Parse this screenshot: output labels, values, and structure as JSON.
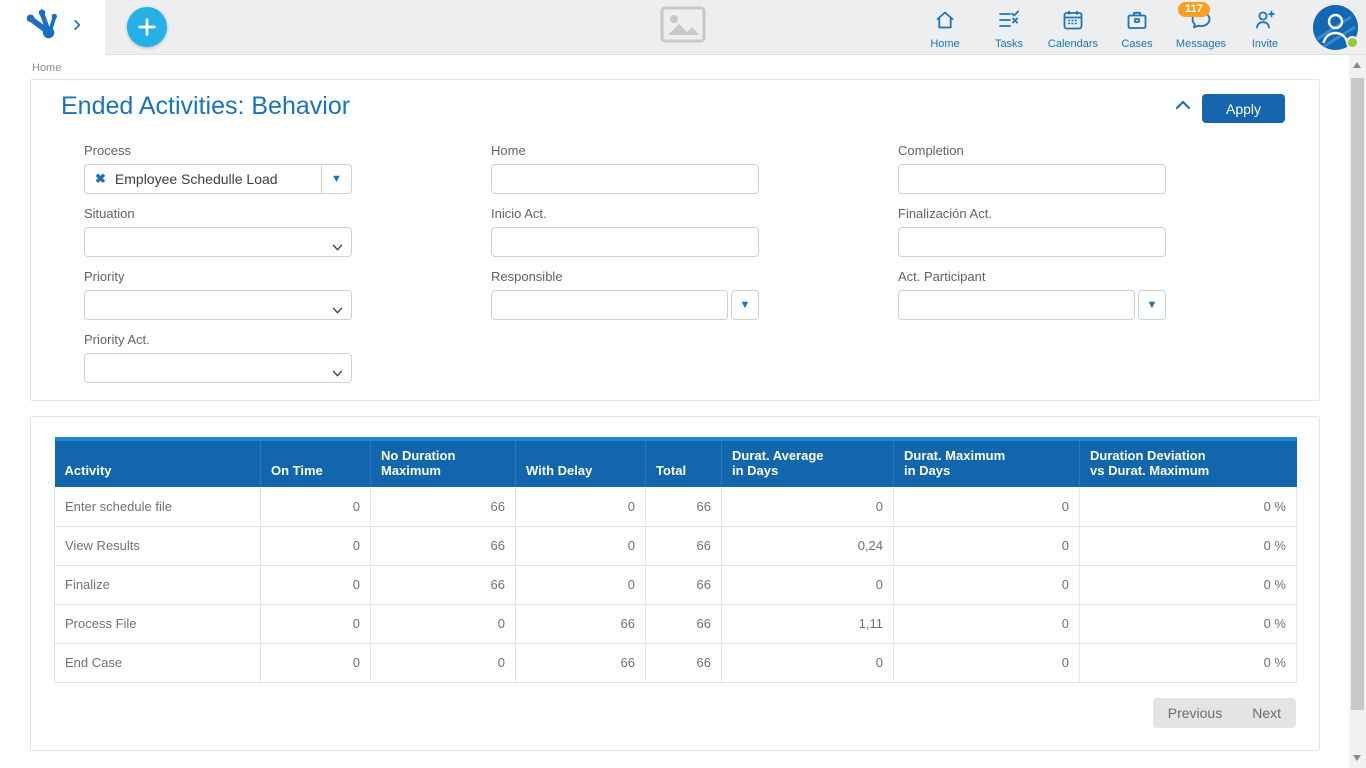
{
  "topbar": {
    "nav": [
      {
        "label": "Home",
        "icon": "home-icon"
      },
      {
        "label": "Tasks",
        "icon": "tasks-icon"
      },
      {
        "label": "Calendars",
        "icon": "calendar-icon"
      },
      {
        "label": "Cases",
        "icon": "briefcase-icon"
      },
      {
        "label": "Messages",
        "icon": "chat-bubble-icon",
        "badge": "117"
      },
      {
        "label": "Invite",
        "icon": "person-add-icon"
      }
    ],
    "plus_button": "+",
    "avatar": {
      "status": "online"
    }
  },
  "breadcrumb": {
    "label": "Home"
  },
  "filter_panel": {
    "title": "Ended Activities: Behavior",
    "apply_label": "Apply",
    "fields": {
      "process": {
        "label": "Process",
        "value": "Employee Schedulle Load"
      },
      "situation": {
        "label": "Situation",
        "value": ""
      },
      "priority": {
        "label": "Priority",
        "value": ""
      },
      "priority_act": {
        "label": "Priority Act.",
        "value": ""
      },
      "home": {
        "label": "Home",
        "value": ""
      },
      "inicio_act": {
        "label": "Inicio Act.",
        "value": ""
      },
      "responsible": {
        "label": "Responsible",
        "value": ""
      },
      "completion": {
        "label": "Completion",
        "value": ""
      },
      "finalizacion_act": {
        "label": "Finalización Act.",
        "value": ""
      },
      "act_participant": {
        "label": "Act. Participant",
        "value": ""
      }
    }
  },
  "table": {
    "columns": [
      "Activity",
      "On Time",
      "No Duration\nMaximum",
      "With Delay",
      "Total",
      "Durat. Average\nin Days",
      "Durat. Maximum\nin Days",
      "Duration Deviation\nvs Durat. Maximum"
    ],
    "rows": [
      [
        "Enter schedule file",
        "0",
        "66",
        "0",
        "66",
        "0",
        "0",
        "0 %"
      ],
      [
        "View Results",
        "0",
        "66",
        "0",
        "66",
        "0,24",
        "0",
        "0 %"
      ],
      [
        "Finalize",
        "0",
        "66",
        "0",
        "66",
        "0",
        "0",
        "0 %"
      ],
      [
        "Process File",
        "0",
        "0",
        "66",
        "66",
        "1,11",
        "0",
        "0 %"
      ],
      [
        "End Case",
        "0",
        "0",
        "66",
        "66",
        "0",
        "0",
        "0 %"
      ]
    ],
    "pagination": {
      "previous": "Previous",
      "next": "Next"
    }
  },
  "colors": {
    "accent_blue": "#1b75bb",
    "title_blue": "#1a73bd",
    "button_blue": "#1566ad",
    "table_header_blue": "#1166ad",
    "table_header_top": "#1c86d9",
    "plus_cyan": "#25b1e8",
    "badge_orange": "#f9a11c",
    "online_green": "#94c83d"
  }
}
